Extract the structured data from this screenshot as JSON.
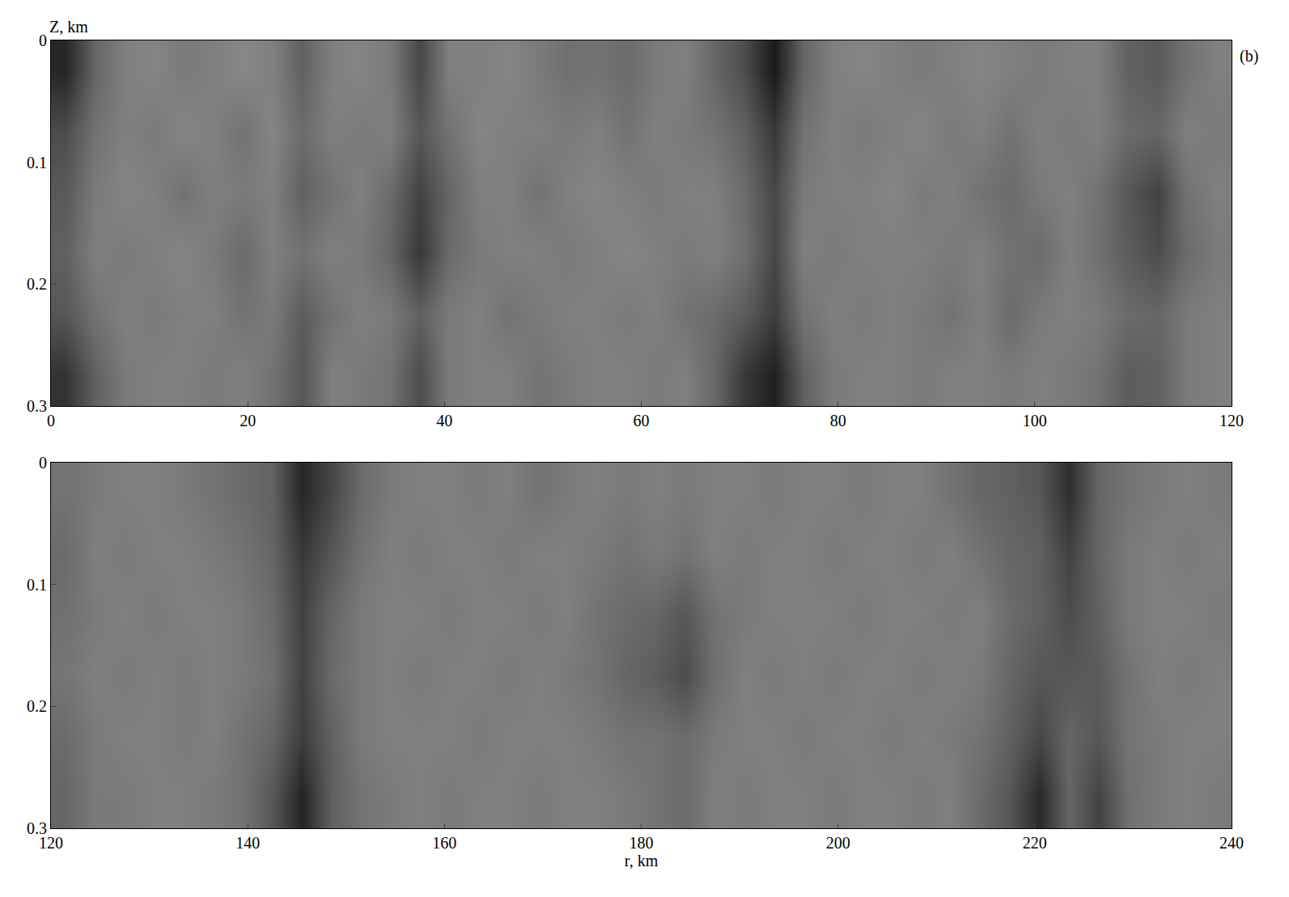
{
  "chart_data": [
    {
      "type": "heatmap",
      "ylabel": "Z, km",
      "annotations": [
        "(b)"
      ],
      "x": [
        1.5,
        4.5,
        7.5,
        10.5,
        13.5,
        16.5,
        19.5,
        22.5,
        25.5,
        28.5,
        31.5,
        34.5,
        37.5,
        40.5,
        43.5,
        46.5,
        49.5,
        52.5,
        55.5,
        58.5,
        61.5,
        64.5,
        67.5,
        70.5,
        73.5,
        76.5,
        79.5,
        82.5,
        85.5,
        88.5,
        91.5,
        94.5,
        97.5,
        100.5,
        103.5,
        106.5,
        109.5,
        112.5,
        115.5,
        118.5
      ],
      "y": [
        0.025,
        0.075,
        0.125,
        0.175,
        0.225,
        0.275
      ],
      "cells": [
        [
          0.85,
          0.6,
          0.5,
          0.48,
          0.52,
          0.5,
          0.47,
          0.5,
          0.62,
          0.5,
          0.48,
          0.52,
          0.72,
          0.5,
          0.5,
          0.48,
          0.52,
          0.56,
          0.55,
          0.58,
          0.52,
          0.5,
          0.6,
          0.7,
          0.9,
          0.6,
          0.5,
          0.48,
          0.5,
          0.52,
          0.5,
          0.48,
          0.5,
          0.52,
          0.5,
          0.5,
          0.62,
          0.65,
          0.55,
          0.5
        ],
        [
          0.7,
          0.55,
          0.5,
          0.52,
          0.48,
          0.5,
          0.55,
          0.48,
          0.58,
          0.5,
          0.52,
          0.5,
          0.66,
          0.55,
          0.48,
          0.5,
          0.5,
          0.52,
          0.5,
          0.55,
          0.5,
          0.52,
          0.55,
          0.62,
          0.78,
          0.55,
          0.5,
          0.52,
          0.5,
          0.48,
          0.52,
          0.5,
          0.55,
          0.5,
          0.52,
          0.5,
          0.58,
          0.6,
          0.5,
          0.52
        ],
        [
          0.65,
          0.52,
          0.48,
          0.5,
          0.55,
          0.5,
          0.52,
          0.5,
          0.62,
          0.55,
          0.5,
          0.58,
          0.74,
          0.6,
          0.5,
          0.5,
          0.55,
          0.5,
          0.48,
          0.5,
          0.52,
          0.5,
          0.5,
          0.58,
          0.72,
          0.52,
          0.5,
          0.5,
          0.48,
          0.52,
          0.5,
          0.55,
          0.58,
          0.52,
          0.5,
          0.55,
          0.66,
          0.74,
          0.55,
          0.5
        ],
        [
          0.62,
          0.5,
          0.52,
          0.5,
          0.48,
          0.52,
          0.58,
          0.5,
          0.55,
          0.5,
          0.52,
          0.6,
          0.78,
          0.58,
          0.52,
          0.5,
          0.5,
          0.52,
          0.5,
          0.48,
          0.5,
          0.52,
          0.5,
          0.56,
          0.72,
          0.5,
          0.52,
          0.5,
          0.5,
          0.5,
          0.52,
          0.5,
          0.55,
          0.58,
          0.5,
          0.56,
          0.64,
          0.7,
          0.58,
          0.52
        ],
        [
          0.66,
          0.55,
          0.5,
          0.52,
          0.5,
          0.5,
          0.55,
          0.52,
          0.64,
          0.55,
          0.5,
          0.52,
          0.62,
          0.52,
          0.5,
          0.55,
          0.52,
          0.5,
          0.5,
          0.52,
          0.5,
          0.55,
          0.58,
          0.64,
          0.76,
          0.55,
          0.5,
          0.52,
          0.5,
          0.52,
          0.55,
          0.5,
          0.58,
          0.52,
          0.5,
          0.52,
          0.58,
          0.6,
          0.52,
          0.5
        ],
        [
          0.8,
          0.62,
          0.52,
          0.5,
          0.5,
          0.52,
          0.5,
          0.55,
          0.66,
          0.5,
          0.52,
          0.55,
          0.7,
          0.52,
          0.5,
          0.5,
          0.55,
          0.52,
          0.5,
          0.5,
          0.52,
          0.5,
          0.6,
          0.78,
          0.88,
          0.62,
          0.52,
          0.5,
          0.5,
          0.52,
          0.5,
          0.5,
          0.52,
          0.5,
          0.52,
          0.55,
          0.64,
          0.62,
          0.52,
          0.5
        ]
      ],
      "zlim": [
        0,
        1
      ],
      "xlim": [
        0,
        120
      ],
      "xticks": [
        0,
        20,
        40,
        60,
        80,
        100,
        120
      ],
      "ylim": [
        0.3,
        0
      ],
      "yticks": [
        0,
        0.1,
        0.2,
        0.3
      ]
    },
    {
      "type": "heatmap",
      "xlabel": "r, km",
      "x": [
        121.5,
        124.5,
        127.5,
        130.5,
        133.5,
        136.5,
        139.5,
        142.5,
        145.5,
        148.5,
        151.5,
        154.5,
        157.5,
        160.5,
        163.5,
        166.5,
        169.5,
        172.5,
        175.5,
        178.5,
        181.5,
        184.5,
        187.5,
        190.5,
        193.5,
        196.5,
        199.5,
        202.5,
        205.5,
        208.5,
        211.5,
        214.5,
        217.5,
        220.5,
        223.5,
        226.5,
        229.5,
        232.5,
        235.5,
        238.5
      ],
      "y": [
        0.025,
        0.075,
        0.125,
        0.175,
        0.225,
        0.275
      ],
      "cells": [
        [
          0.55,
          0.52,
          0.5,
          0.5,
          0.52,
          0.55,
          0.58,
          0.62,
          0.85,
          0.72,
          0.58,
          0.52,
          0.5,
          0.5,
          0.52,
          0.5,
          0.55,
          0.52,
          0.5,
          0.52,
          0.5,
          0.52,
          0.5,
          0.5,
          0.52,
          0.5,
          0.5,
          0.52,
          0.5,
          0.5,
          0.55,
          0.6,
          0.62,
          0.66,
          0.82,
          0.6,
          0.55,
          0.52,
          0.5,
          0.52
        ],
        [
          0.58,
          0.5,
          0.52,
          0.5,
          0.5,
          0.52,
          0.55,
          0.6,
          0.78,
          0.66,
          0.55,
          0.5,
          0.52,
          0.5,
          0.5,
          0.52,
          0.5,
          0.5,
          0.52,
          0.55,
          0.52,
          0.55,
          0.5,
          0.52,
          0.5,
          0.5,
          0.52,
          0.5,
          0.5,
          0.52,
          0.5,
          0.55,
          0.6,
          0.62,
          0.74,
          0.6,
          0.52,
          0.5,
          0.52,
          0.5
        ],
        [
          0.56,
          0.52,
          0.5,
          0.52,
          0.5,
          0.5,
          0.52,
          0.58,
          0.74,
          0.6,
          0.52,
          0.5,
          0.5,
          0.52,
          0.5,
          0.5,
          0.52,
          0.5,
          0.55,
          0.58,
          0.6,
          0.66,
          0.55,
          0.52,
          0.5,
          0.5,
          0.5,
          0.52,
          0.5,
          0.5,
          0.52,
          0.5,
          0.58,
          0.62,
          0.7,
          0.62,
          0.52,
          0.5,
          0.5,
          0.52
        ],
        [
          0.54,
          0.5,
          0.52,
          0.5,
          0.52,
          0.5,
          0.52,
          0.56,
          0.74,
          0.58,
          0.52,
          0.5,
          0.52,
          0.5,
          0.5,
          0.52,
          0.5,
          0.52,
          0.55,
          0.6,
          0.64,
          0.7,
          0.56,
          0.5,
          0.52,
          0.5,
          0.52,
          0.5,
          0.5,
          0.52,
          0.5,
          0.52,
          0.6,
          0.66,
          0.66,
          0.64,
          0.55,
          0.5,
          0.52,
          0.5
        ],
        [
          0.58,
          0.52,
          0.5,
          0.5,
          0.52,
          0.5,
          0.55,
          0.6,
          0.76,
          0.62,
          0.52,
          0.5,
          0.5,
          0.5,
          0.52,
          0.5,
          0.5,
          0.5,
          0.52,
          0.55,
          0.55,
          0.58,
          0.52,
          0.5,
          0.5,
          0.52,
          0.5,
          0.5,
          0.52,
          0.5,
          0.52,
          0.55,
          0.62,
          0.72,
          0.6,
          0.66,
          0.55,
          0.52,
          0.5,
          0.5
        ],
        [
          0.6,
          0.52,
          0.52,
          0.5,
          0.5,
          0.52,
          0.55,
          0.66,
          0.86,
          0.62,
          0.55,
          0.52,
          0.5,
          0.52,
          0.5,
          0.5,
          0.52,
          0.5,
          0.5,
          0.52,
          0.55,
          0.58,
          0.5,
          0.52,
          0.5,
          0.5,
          0.52,
          0.5,
          0.5,
          0.52,
          0.5,
          0.58,
          0.66,
          0.84,
          0.6,
          0.74,
          0.56,
          0.52,
          0.5,
          0.52
        ]
      ],
      "zlim": [
        0,
        1
      ],
      "xlim": [
        120,
        240
      ],
      "xticks": [
        120,
        140,
        160,
        180,
        200,
        220,
        240
      ],
      "ylim": [
        0.3,
        0
      ],
      "yticks": [
        0,
        0.1,
        0.2,
        0.3
      ]
    }
  ]
}
